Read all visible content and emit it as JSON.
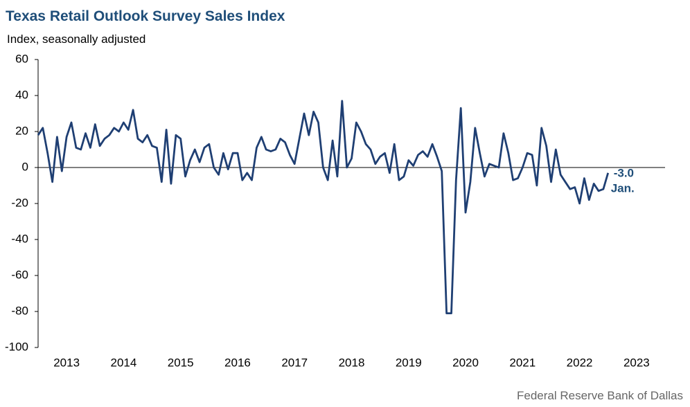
{
  "chart_data": {
    "type": "line",
    "title": "Texas Retail Outlook Survey Sales Index",
    "subtitle": "Index, seasonally adjusted",
    "source": "Federal Reserve Bank of Dallas",
    "annotations": [
      {
        "text": "-3.0"
      },
      {
        "text": "Jan."
      }
    ],
    "x": [
      2013,
      2013.083,
      2013.167,
      2013.25,
      2013.333,
      2013.417,
      2013.5,
      2013.583,
      2013.667,
      2013.75,
      2013.833,
      2013.917,
      2014,
      2014.083,
      2014.167,
      2014.25,
      2014.333,
      2014.417,
      2014.5,
      2014.583,
      2014.667,
      2014.75,
      2014.833,
      2014.917,
      2015,
      2015.083,
      2015.167,
      2015.25,
      2015.333,
      2015.417,
      2015.5,
      2015.583,
      2015.667,
      2015.75,
      2015.833,
      2015.917,
      2016,
      2016.083,
      2016.167,
      2016.25,
      2016.333,
      2016.417,
      2016.5,
      2016.583,
      2016.667,
      2016.75,
      2016.833,
      2016.917,
      2017,
      2017.083,
      2017.167,
      2017.25,
      2017.333,
      2017.417,
      2017.5,
      2017.583,
      2017.667,
      2017.75,
      2017.833,
      2017.917,
      2018,
      2018.083,
      2018.167,
      2018.25,
      2018.333,
      2018.417,
      2018.5,
      2018.583,
      2018.667,
      2018.75,
      2018.833,
      2018.917,
      2019,
      2019.083,
      2019.167,
      2019.25,
      2019.333,
      2019.417,
      2019.5,
      2019.583,
      2019.667,
      2019.75,
      2019.833,
      2019.917,
      2020,
      2020.083,
      2020.167,
      2020.25,
      2020.333,
      2020.417,
      2020.5,
      2020.583,
      2020.667,
      2020.75,
      2020.833,
      2020.917,
      2021,
      2021.083,
      2021.167,
      2021.25,
      2021.333,
      2021.417,
      2021.5,
      2021.583,
      2021.667,
      2021.75,
      2021.833,
      2021.917,
      2022,
      2022.083,
      2022.167,
      2022.25,
      2022.333,
      2022.417,
      2022.5,
      2022.583,
      2022.667,
      2022.75,
      2022.833,
      2022.917,
      2023
    ],
    "series": [
      {
        "color": "#1f3f73",
        "values": [
          18,
          22,
          8,
          -8,
          17,
          -2,
          17,
          25,
          11,
          10,
          19,
          11,
          24,
          12,
          16,
          18,
          22,
          20,
          25,
          21,
          32,
          16,
          14,
          18,
          12,
          11,
          -8,
          21,
          -9,
          18,
          16,
          -5,
          4,
          10,
          3,
          11,
          13,
          0,
          -4,
          8,
          -1,
          8,
          8,
          -7,
          -3,
          -7,
          11,
          17,
          10,
          9,
          10,
          16,
          14,
          7,
          2,
          16,
          30,
          18,
          31,
          25,
          0,
          -7,
          15,
          -5,
          37,
          0,
          5,
          25,
          20,
          13,
          10,
          2,
          6,
          8,
          -3,
          13,
          -7,
          -5,
          4,
          1,
          7,
          9,
          6,
          13,
          6,
          -2,
          -81,
          -81,
          -7,
          33,
          -25,
          -8,
          22,
          8,
          -5,
          2,
          1,
          0,
          19,
          8,
          -7,
          -6,
          0,
          8,
          7,
          -10,
          22,
          12,
          -8,
          10,
          -4,
          -8,
          -12,
          -11,
          -20,
          -6,
          -18,
          -9,
          -13,
          -12,
          -3
        ]
      }
    ],
    "xlim": [
      2013,
      2024
    ],
    "xticks": [
      {
        "value": 2013.5,
        "label": "2013"
      },
      {
        "value": 2014.5,
        "label": "2014"
      },
      {
        "value": 2015.5,
        "label": "2015"
      },
      {
        "value": 2016.5,
        "label": "2016"
      },
      {
        "value": 2017.5,
        "label": "2017"
      },
      {
        "value": 2018.5,
        "label": "2018"
      },
      {
        "value": 2019.5,
        "label": "2019"
      },
      {
        "value": 2020.5,
        "label": "2020"
      },
      {
        "value": 2021.5,
        "label": "2021"
      },
      {
        "value": 2022.5,
        "label": "2022"
      },
      {
        "value": 2023.5,
        "label": "2023"
      }
    ],
    "ylim": [
      -100,
      60
    ],
    "yticks": [
      -100,
      -80,
      -60,
      -40,
      -20,
      0,
      20,
      40,
      60
    ]
  }
}
